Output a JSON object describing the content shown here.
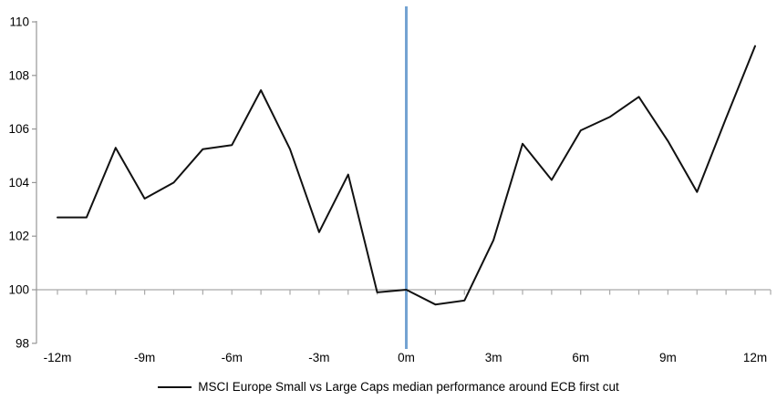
{
  "chart_data": {
    "type": "line",
    "x": [
      -12,
      -11,
      -10,
      -9,
      -8,
      -7,
      -6,
      -5,
      -4,
      -3,
      -2,
      -1,
      0,
      1,
      2,
      3,
      4,
      5,
      6,
      7,
      8,
      9,
      10,
      11,
      12
    ],
    "series": [
      {
        "name": "MSCI Europe Small vs Large Caps median performance around ECB first cut",
        "color": "#111111",
        "values": [
          102.7,
          102.7,
          105.3,
          103.4,
          104.0,
          105.25,
          105.4,
          107.45,
          105.25,
          102.15,
          104.3,
          99.9,
          100.0,
          99.45,
          99.6,
          101.85,
          105.45,
          104.1,
          105.95,
          106.45,
          107.2,
          105.55,
          103.65,
          106.4,
          109.1
        ]
      }
    ],
    "xlim": [
      -12,
      12
    ],
    "ylim": [
      98,
      110
    ],
    "y_ticks": [
      110,
      108,
      106,
      104,
      102,
      100,
      98
    ],
    "x_ticks": [
      {
        "value": -12,
        "label": "-12m"
      },
      {
        "value": -9,
        "label": "-9m"
      },
      {
        "value": -6,
        "label": "-6m"
      },
      {
        "value": -3,
        "label": "-3m"
      },
      {
        "value": 0,
        "label": "0m"
      },
      {
        "value": 3,
        "label": "3m"
      },
      {
        "value": 6,
        "label": "6m"
      },
      {
        "value": 9,
        "label": "9m"
      },
      {
        "value": 12,
        "label": "12m"
      }
    ],
    "baseline": 100,
    "minor_tick_every_month": true,
    "event_line": {
      "x": 0,
      "color": "#74a3d2"
    },
    "axis_color": "#969696",
    "baseline_color": "#a9a9a9",
    "grid": false,
    "legend_position": "bottom-center"
  }
}
